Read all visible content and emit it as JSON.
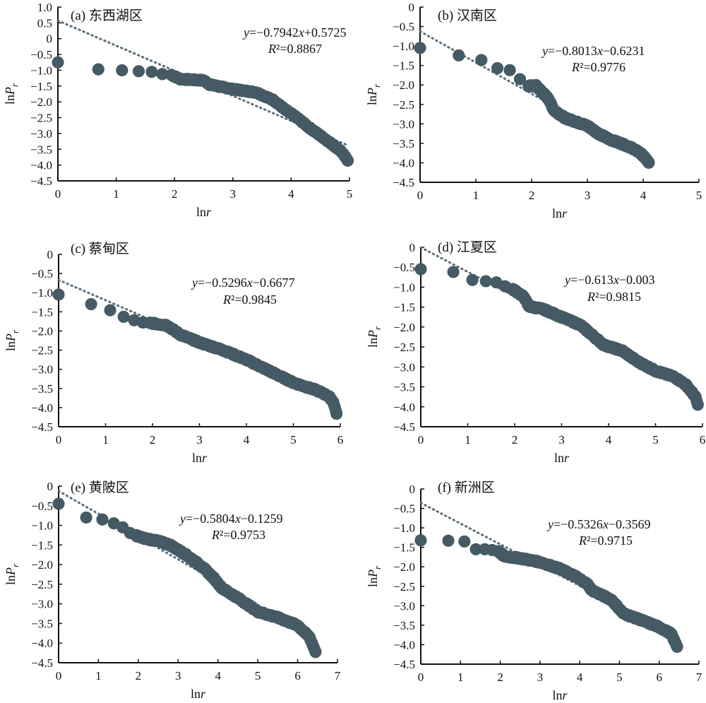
{
  "chart_data": [
    {
      "type": "scatter",
      "id": "a",
      "title": "(a) 东西湖区",
      "xlabel": "lnr",
      "ylabel": "lnPr",
      "xlim": [
        0,
        5
      ],
      "ylim": [
        -4.5,
        1.0
      ],
      "xticks": [
        "0",
        "1",
        "2",
        "3",
        "4",
        "5"
      ],
      "yticks": [
        "1.0",
        "0.5",
        "0",
        "−0.5",
        "−1.0",
        "−1.5",
        "−2.0",
        "−2.5",
        "−3.0",
        "−3.5",
        "−4.0",
        "−4.5"
      ],
      "equation": "y=−0.7942x+0.5725",
      "r2": "R²=0.8867",
      "trend": {
        "slope": -0.7942,
        "intercept": 0.5725
      },
      "anchors": [
        [
          0,
          -0.75
        ],
        [
          0.693,
          -0.97
        ],
        [
          1.099,
          -1.0
        ],
        [
          1.386,
          -1.03
        ],
        [
          1.609,
          -1.05
        ],
        [
          1.79,
          -1.12
        ],
        [
          1.95,
          -1.15
        ],
        [
          2.1,
          -1.28
        ],
        [
          2.5,
          -1.32
        ],
        [
          2.6,
          -1.45
        ],
        [
          3.0,
          -1.6
        ],
        [
          3.4,
          -1.7
        ],
        [
          3.7,
          -1.95
        ],
        [
          3.9,
          -2.25
        ],
        [
          4.1,
          -2.5
        ],
        [
          4.3,
          -2.8
        ],
        [
          4.6,
          -3.2
        ],
        [
          4.85,
          -3.55
        ],
        [
          4.97,
          -3.85
        ]
      ]
    },
    {
      "type": "scatter",
      "id": "b",
      "title": "(b) 汉南区",
      "xlabel": "lnr",
      "ylabel": "lnPr",
      "xlim": [
        0,
        5
      ],
      "ylim": [
        -4.5,
        0
      ],
      "xticks": [
        "0",
        "1",
        "2",
        "3",
        "4",
        "5"
      ],
      "yticks": [
        "0",
        "−0.5",
        "−1.0",
        "−1.5",
        "−2.0",
        "−2.5",
        "−3.0",
        "−3.5",
        "−4.0",
        "−4.5"
      ],
      "equation": "y=−0.8013x−0.6231",
      "r2": "R²=0.9776",
      "trend": {
        "slope": -0.8013,
        "intercept": -0.6231
      },
      "anchors": [
        [
          0,
          -1.05
        ],
        [
          0.693,
          -1.24
        ],
        [
          1.099,
          -1.36
        ],
        [
          1.386,
          -1.57
        ],
        [
          1.609,
          -1.62
        ],
        [
          1.79,
          -1.85
        ],
        [
          1.95,
          -2.03
        ],
        [
          2.08,
          -2.02
        ],
        [
          2.2,
          -2.2
        ],
        [
          2.3,
          -2.35
        ],
        [
          2.4,
          -2.65
        ],
        [
          2.6,
          -2.85
        ],
        [
          2.8,
          -2.95
        ],
        [
          3.0,
          -3.05
        ],
        [
          3.2,
          -3.25
        ],
        [
          3.4,
          -3.4
        ],
        [
          3.6,
          -3.5
        ],
        [
          3.8,
          -3.62
        ],
        [
          3.95,
          -3.75
        ],
        [
          4.05,
          -3.9
        ],
        [
          4.1,
          -4.0
        ]
      ]
    },
    {
      "type": "scatter",
      "id": "c",
      "title": "(c) 蔡甸区",
      "xlabel": "lnr",
      "ylabel": "lnPr",
      "xlim": [
        0,
        6
      ],
      "ylim": [
        -4.5,
        0
      ],
      "xticks": [
        "0",
        "1",
        "2",
        "3",
        "4",
        "5",
        "6"
      ],
      "yticks": [
        "0",
        "−0.5",
        "−1.0",
        "−1.5",
        "−2.0",
        "−2.5",
        "−3.0",
        "−3.5",
        "−4.0",
        "−4.5"
      ],
      "equation": "y=−0.5296x−0.6677",
      "r2": "R²=0.9845",
      "trend": {
        "slope": -0.5296,
        "intercept": -0.6677
      },
      "anchors": [
        [
          0,
          -1.05
        ],
        [
          0.693,
          -1.3
        ],
        [
          1.099,
          -1.46
        ],
        [
          1.386,
          -1.63
        ],
        [
          1.609,
          -1.72
        ],
        [
          1.8,
          -1.78
        ],
        [
          2.0,
          -1.8
        ],
        [
          2.3,
          -1.85
        ],
        [
          2.6,
          -2.1
        ],
        [
          3.0,
          -2.3
        ],
        [
          3.5,
          -2.5
        ],
        [
          4.0,
          -2.75
        ],
        [
          4.5,
          -3.05
        ],
        [
          5.0,
          -3.35
        ],
        [
          5.5,
          -3.55
        ],
        [
          5.75,
          -3.7
        ],
        [
          5.85,
          -3.85
        ],
        [
          5.92,
          -4.15
        ]
      ]
    },
    {
      "type": "scatter",
      "id": "d",
      "title": "(d) 江夏区",
      "xlabel": "lnr",
      "ylabel": "lnPr",
      "xlim": [
        0,
        6
      ],
      "ylim": [
        -4.5,
        0
      ],
      "xticks": [
        "0",
        "1",
        "2",
        "3",
        "4",
        "5",
        "6"
      ],
      "yticks": [
        "0",
        "−0.5",
        "−1.0",
        "−1.5",
        "−2.0",
        "−2.5",
        "−3.0",
        "−3.5",
        "−4.0",
        "−4.5"
      ],
      "equation": "y=−0.613x−0.003",
      "r2": "R²=0.9815",
      "trend": {
        "slope": -0.613,
        "intercept": -0.003
      },
      "anchors": [
        [
          0,
          -0.55
        ],
        [
          0.693,
          -0.62
        ],
        [
          1.099,
          -0.82
        ],
        [
          1.386,
          -0.85
        ],
        [
          1.609,
          -0.88
        ],
        [
          1.8,
          -0.98
        ],
        [
          2.0,
          -1.08
        ],
        [
          2.2,
          -1.25
        ],
        [
          2.3,
          -1.48
        ],
        [
          2.6,
          -1.55
        ],
        [
          3.0,
          -1.75
        ],
        [
          3.4,
          -1.95
        ],
        [
          3.7,
          -2.25
        ],
        [
          3.9,
          -2.45
        ],
        [
          4.3,
          -2.6
        ],
        [
          4.6,
          -2.85
        ],
        [
          5.0,
          -3.1
        ],
        [
          5.4,
          -3.25
        ],
        [
          5.65,
          -3.45
        ],
        [
          5.85,
          -3.75
        ],
        [
          5.9,
          -3.95
        ]
      ]
    },
    {
      "type": "scatter",
      "id": "e",
      "title": "(e) 黄陂区",
      "xlabel": "lnr",
      "ylabel": "lnPr",
      "xlim": [
        0,
        7
      ],
      "ylim": [
        -4.5,
        0
      ],
      "xticks": [
        "0",
        "1",
        "2",
        "3",
        "4",
        "5",
        "6",
        "7"
      ],
      "yticks": [
        "0",
        "−0.5",
        "−1.0",
        "−1.5",
        "−2.0",
        "−2.5",
        "−3.0",
        "−3.5",
        "−4.0",
        "−4.5"
      ],
      "equation": "y=−0.5804x−0.1259",
      "r2": "R²=0.9753",
      "trend": {
        "slope": -0.5804,
        "intercept": -0.1259
      },
      "anchors": [
        [
          0,
          -0.45
        ],
        [
          0.693,
          -0.8
        ],
        [
          1.099,
          -0.85
        ],
        [
          1.386,
          -0.95
        ],
        [
          1.609,
          -1.05
        ],
        [
          1.8,
          -1.2
        ],
        [
          2.1,
          -1.32
        ],
        [
          2.5,
          -1.4
        ],
        [
          2.8,
          -1.5
        ],
        [
          3.2,
          -1.75
        ],
        [
          3.6,
          -2.05
        ],
        [
          3.9,
          -2.35
        ],
        [
          4.1,
          -2.6
        ],
        [
          4.5,
          -2.85
        ],
        [
          5.0,
          -3.2
        ],
        [
          5.5,
          -3.35
        ],
        [
          6.0,
          -3.55
        ],
        [
          6.3,
          -3.85
        ],
        [
          6.45,
          -4.22
        ]
      ]
    },
    {
      "type": "scatter",
      "id": "f",
      "title": "(f) 新洲区",
      "xlabel": "lnr",
      "ylabel": "lnPr",
      "xlim": [
        0,
        7
      ],
      "ylim": [
        -4.5,
        0
      ],
      "xticks": [
        "0",
        "1",
        "2",
        "3",
        "4",
        "5",
        "6",
        "7"
      ],
      "yticks": [
        "0",
        "−0.5",
        "−1.0",
        "−1.5",
        "−2.0",
        "−2.5",
        "−3.0",
        "−3.5",
        "−4.0",
        "−4.5"
      ],
      "equation": "y=−0.5326x−0.3569",
      "r2": "R²=0.9715",
      "trend": {
        "slope": -0.5326,
        "intercept": -0.3569
      },
      "anchors": [
        [
          0,
          -1.32
        ],
        [
          0.693,
          -1.33
        ],
        [
          1.099,
          -1.35
        ],
        [
          1.386,
          -1.55
        ],
        [
          1.609,
          -1.55
        ],
        [
          1.8,
          -1.57
        ],
        [
          1.95,
          -1.6
        ],
        [
          2.1,
          -1.73
        ],
        [
          2.5,
          -1.78
        ],
        [
          3.0,
          -1.88
        ],
        [
          3.5,
          -2.05
        ],
        [
          3.9,
          -2.25
        ],
        [
          4.2,
          -2.45
        ],
        [
          4.3,
          -2.6
        ],
        [
          4.8,
          -2.85
        ],
        [
          5.1,
          -3.2
        ],
        [
          5.5,
          -3.35
        ],
        [
          6.0,
          -3.55
        ],
        [
          6.3,
          -3.72
        ],
        [
          6.45,
          -4.05
        ]
      ]
    }
  ]
}
